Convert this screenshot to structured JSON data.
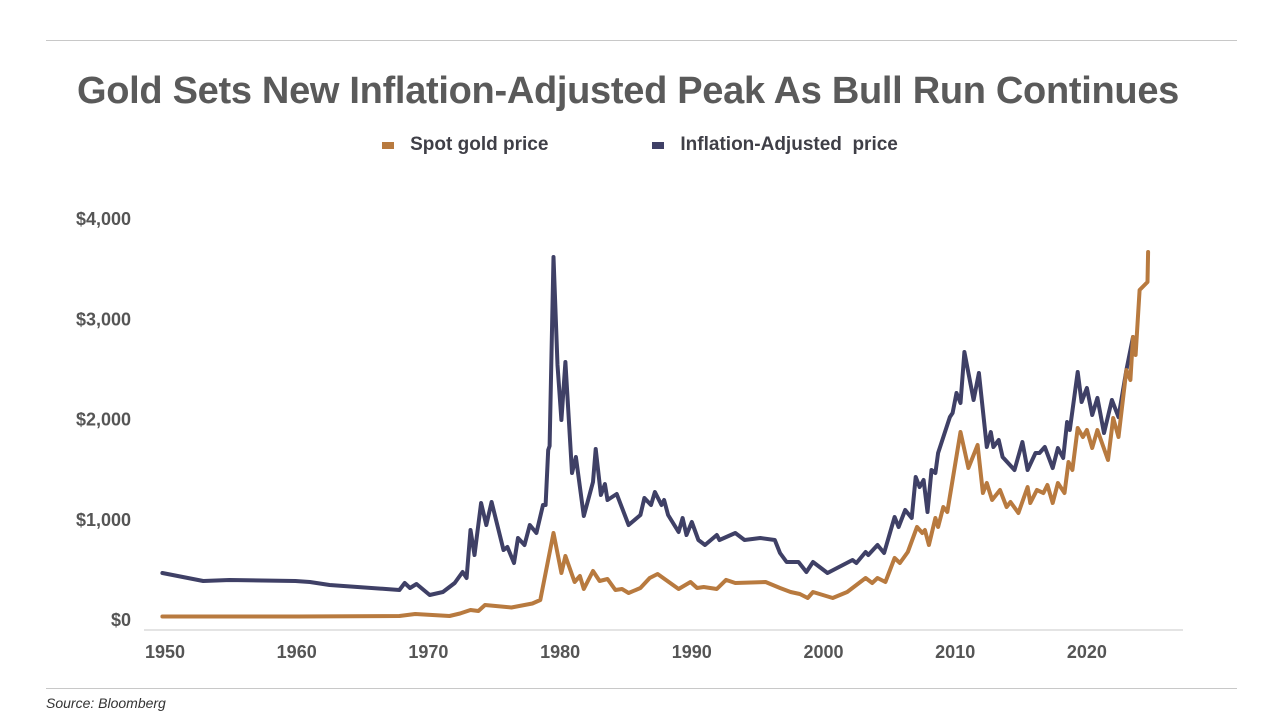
{
  "chart_data": {
    "type": "line",
    "title": "Gold Sets New Inflation-Adjusted Peak As Bull Run Continues",
    "source": "Source: Bloomberg",
    "xlabel": "",
    "ylabel": "",
    "xlim": [
      1950,
      2025
    ],
    "ylim": [
      0,
      4000
    ],
    "x_ticks": [
      "1950",
      "1960",
      "1970",
      "1980",
      "1990",
      "2000",
      "2010",
      "2020"
    ],
    "y_ticks": [
      "$0",
      "$1,000",
      "$2,000",
      "$3,000",
      "$4,000"
    ],
    "grid": false,
    "legend_position": "top-center",
    "series": [
      {
        "name": "Spot gold price",
        "color": "#b87a3f",
        "points": [
          [
            1949.8,
            35
          ],
          [
            1960,
            35
          ],
          [
            1967.8,
            40
          ],
          [
            1969,
            60
          ],
          [
            1971.6,
            40
          ],
          [
            1972.4,
            65
          ],
          [
            1973.2,
            100
          ],
          [
            1973.8,
            90
          ],
          [
            1974.3,
            150
          ],
          [
            1976.3,
            125
          ],
          [
            1977.9,
            165
          ],
          [
            1978.5,
            200
          ],
          [
            1979.1,
            600
          ],
          [
            1979.5,
            868
          ],
          [
            1980.1,
            469
          ],
          [
            1980.4,
            638
          ],
          [
            1981.1,
            379
          ],
          [
            1981.5,
            439
          ],
          [
            1981.8,
            309
          ],
          [
            1982.5,
            489
          ],
          [
            1983.0,
            389
          ],
          [
            1983.6,
            409
          ],
          [
            1984.2,
            299
          ],
          [
            1984.7,
            309
          ],
          [
            1985.2,
            269
          ],
          [
            1986.1,
            319
          ],
          [
            1986.8,
            419
          ],
          [
            1987.4,
            459
          ],
          [
            1989.0,
            309
          ],
          [
            1989.9,
            379
          ],
          [
            1990.4,
            319
          ],
          [
            1990.9,
            329
          ],
          [
            1991.9,
            309
          ],
          [
            1992.6,
            400
          ],
          [
            1993.3,
            369
          ],
          [
            1995.6,
            379
          ],
          [
            1996.7,
            319
          ],
          [
            1997.5,
            279
          ],
          [
            1998.2,
            259
          ],
          [
            1998.8,
            219
          ],
          [
            1999.2,
            279
          ],
          [
            2000.7,
            219
          ],
          [
            2001.8,
            279
          ],
          [
            2003.2,
            419
          ],
          [
            2003.7,
            369
          ],
          [
            2004.1,
            419
          ],
          [
            2004.7,
            379
          ],
          [
            2005.4,
            618
          ],
          [
            2005.8,
            569
          ],
          [
            2006.4,
            678
          ],
          [
            2007.1,
            928
          ],
          [
            2007.5,
            868
          ],
          [
            2007.7,
            898
          ],
          [
            2008.0,
            748
          ],
          [
            2008.5,
            1017
          ],
          [
            2008.7,
            928
          ],
          [
            2009.1,
            1127
          ],
          [
            2009.4,
            1077
          ],
          [
            2010.4,
            1875
          ],
          [
            2011.0,
            1516
          ],
          [
            2011.7,
            1746
          ],
          [
            2012.1,
            1267
          ],
          [
            2012.4,
            1367
          ],
          [
            2012.8,
            1197
          ],
          [
            2013.4,
            1297
          ],
          [
            2013.9,
            1127
          ],
          [
            2014.2,
            1177
          ],
          [
            2014.8,
            1067
          ],
          [
            2015.5,
            1327
          ],
          [
            2015.7,
            1167
          ],
          [
            2016.2,
            1297
          ],
          [
            2016.7,
            1267
          ],
          [
            2017.0,
            1347
          ],
          [
            2017.4,
            1167
          ],
          [
            2017.8,
            1367
          ],
          [
            2018.3,
            1267
          ],
          [
            2018.6,
            1576
          ],
          [
            2018.9,
            1496
          ],
          [
            2019.3,
            1915
          ],
          [
            2019.7,
            1825
          ],
          [
            2020.0,
            1895
          ],
          [
            2020.4,
            1716
          ],
          [
            2020.8,
            1895
          ],
          [
            2021.6,
            1596
          ],
          [
            2022.0,
            2015
          ],
          [
            2022.4,
            1825
          ],
          [
            2023.0,
            2494
          ],
          [
            2023.3,
            2394
          ],
          [
            2023.5,
            2823
          ],
          [
            2023.7,
            2643
          ],
          [
            2024.0,
            3292
          ],
          [
            2024.6,
            3372
          ],
          [
            2024.65,
            3671
          ]
        ]
      },
      {
        "name": "Inflation-Adjusted  price",
        "color": "#3f4066",
        "points": [
          [
            1949.8,
            469
          ],
          [
            1952.9,
            389
          ],
          [
            1954.9,
            399
          ],
          [
            1959.9,
            389
          ],
          [
            1961.0,
            379
          ],
          [
            1962.5,
            349
          ],
          [
            1967.8,
            299
          ],
          [
            1968.2,
            369
          ],
          [
            1968.6,
            319
          ],
          [
            1969.1,
            359
          ],
          [
            1970.1,
            249
          ],
          [
            1971.1,
            279
          ],
          [
            1972.0,
            369
          ],
          [
            1972.6,
            479
          ],
          [
            1972.9,
            419
          ],
          [
            1973.2,
            898
          ],
          [
            1973.5,
            648
          ],
          [
            1974.0,
            1167
          ],
          [
            1974.4,
            948
          ],
          [
            1974.8,
            1177
          ],
          [
            1975.7,
            698
          ],
          [
            1976.0,
            728
          ],
          [
            1976.5,
            569
          ],
          [
            1976.8,
            818
          ],
          [
            1977.3,
            748
          ],
          [
            1977.7,
            948
          ],
          [
            1978.2,
            868
          ],
          [
            1978.7,
            1147
          ],
          [
            1978.9,
            1147
          ],
          [
            1979.1,
            1696
          ],
          [
            1979.2,
            1736
          ],
          [
            1979.5,
            3621
          ],
          [
            1979.8,
            2544
          ],
          [
            1980.1,
            1995
          ],
          [
            1980.4,
            2574
          ],
          [
            1980.9,
            1466
          ],
          [
            1981.2,
            1626
          ],
          [
            1981.8,
            1037
          ],
          [
            1982.5,
            1377
          ],
          [
            1982.7,
            1706
          ],
          [
            1983.1,
            1247
          ],
          [
            1983.4,
            1357
          ],
          [
            1983.6,
            1197
          ],
          [
            1984.3,
            1257
          ],
          [
            1985.2,
            948
          ],
          [
            1986.1,
            1047
          ],
          [
            1986.4,
            1217
          ],
          [
            1986.9,
            1147
          ],
          [
            1987.2,
            1277
          ],
          [
            1987.7,
            1147
          ],
          [
            1987.9,
            1197
          ],
          [
            1988.2,
            1047
          ],
          [
            1989.0,
            878
          ],
          [
            1989.3,
            1017
          ],
          [
            1989.6,
            848
          ],
          [
            1990.0,
            978
          ],
          [
            1990.5,
            798
          ],
          [
            1991.0,
            748
          ],
          [
            1991.9,
            848
          ],
          [
            1992.1,
            798
          ],
          [
            1993.3,
            868
          ],
          [
            1994.0,
            798
          ],
          [
            1995.2,
            818
          ],
          [
            1996.3,
            798
          ],
          [
            1996.7,
            668
          ],
          [
            1997.2,
            579
          ],
          [
            1998.1,
            579
          ],
          [
            1998.7,
            479
          ],
          [
            1999.2,
            579
          ],
          [
            2000.3,
            469
          ],
          [
            2002.2,
            599
          ],
          [
            2002.5,
            569
          ],
          [
            2003.2,
            678
          ],
          [
            2003.4,
            648
          ],
          [
            2004.1,
            748
          ],
          [
            2004.6,
            668
          ],
          [
            2005.4,
            1027
          ],
          [
            2005.7,
            928
          ],
          [
            2006.2,
            1097
          ],
          [
            2006.7,
            1017
          ],
          [
            2007.0,
            1426
          ],
          [
            2007.3,
            1327
          ],
          [
            2007.6,
            1397
          ],
          [
            2007.9,
            1077
          ],
          [
            2008.2,
            1496
          ],
          [
            2008.5,
            1466
          ],
          [
            2008.7,
            1666
          ],
          [
            2009.6,
            2025
          ],
          [
            2009.8,
            2065
          ],
          [
            2010.1,
            2264
          ],
          [
            2010.4,
            2165
          ],
          [
            2010.7,
            2673
          ],
          [
            2011.4,
            2195
          ],
          [
            2011.8,
            2464
          ],
          [
            2012.4,
            1726
          ],
          [
            2012.7,
            1875
          ],
          [
            2012.9,
            1726
          ],
          [
            2013.3,
            1796
          ],
          [
            2013.6,
            1626
          ],
          [
            2014.5,
            1496
          ],
          [
            2015.1,
            1776
          ],
          [
            2015.5,
            1496
          ],
          [
            2016.1,
            1666
          ],
          [
            2016.4,
            1666
          ],
          [
            2016.8,
            1726
          ],
          [
            2017.4,
            1516
          ],
          [
            2017.8,
            1716
          ],
          [
            2018.2,
            1616
          ],
          [
            2018.5,
            1975
          ],
          [
            2018.7,
            1895
          ],
          [
            2019.3,
            2474
          ],
          [
            2019.6,
            2175
          ],
          [
            2020.0,
            2314
          ],
          [
            2020.4,
            2045
          ],
          [
            2020.8,
            2215
          ],
          [
            2021.3,
            1865
          ],
          [
            2021.9,
            2195
          ],
          [
            2022.4,
            2025
          ],
          [
            2023.0,
            2494
          ],
          [
            2023.5,
            2823
          ]
        ]
      }
    ]
  }
}
